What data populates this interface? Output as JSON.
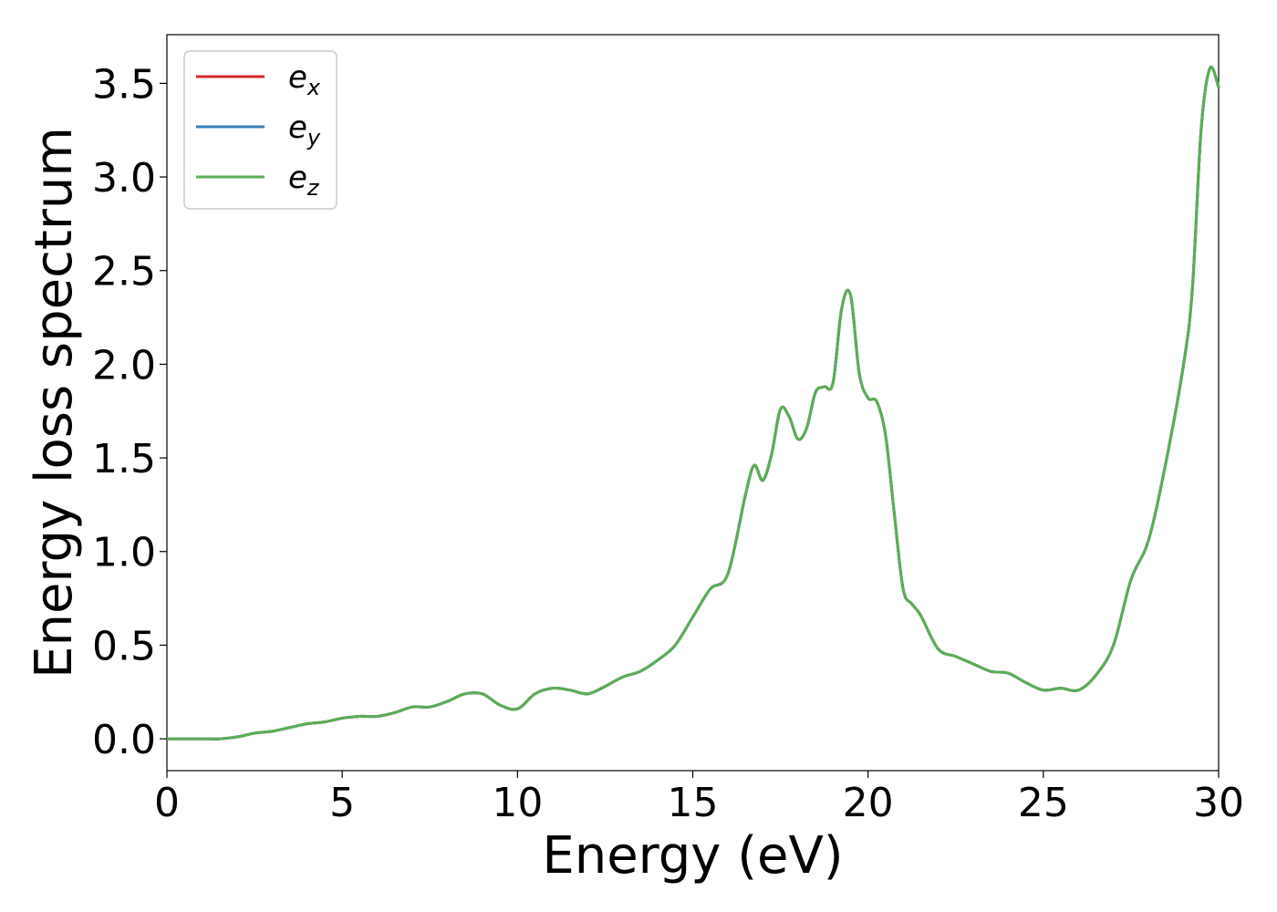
{
  "chart_data": {
    "type": "line",
    "title": "",
    "xlabel": "Energy (eV)",
    "ylabel": "Energy loss spectrum",
    "xlim": [
      0,
      30
    ],
    "ylim": [
      -0.17,
      3.76
    ],
    "xticks": [
      0,
      5,
      10,
      15,
      20,
      25,
      30
    ],
    "yticks": [
      0.0,
      0.5,
      1.0,
      1.5,
      2.0,
      2.5,
      3.0,
      3.5
    ],
    "xtick_labels": [
      "0",
      "5",
      "10",
      "15",
      "20",
      "25",
      "30"
    ],
    "ytick_labels": [
      "0.0",
      "0.5",
      "1.0",
      "1.5",
      "2.0",
      "2.5",
      "3.0",
      "3.5"
    ],
    "grid": false,
    "legend_position": "top-left",
    "x": [
      0,
      0.5,
      1,
      1.5,
      2,
      2.5,
      3,
      3.5,
      4,
      4.5,
      5,
      5.5,
      6,
      6.5,
      7,
      7.5,
      8,
      8.5,
      9,
      9.5,
      10,
      10.5,
      11,
      11.5,
      12,
      12.5,
      13,
      13.5,
      14,
      14.5,
      15,
      15.5,
      16,
      16.5,
      16.75,
      17,
      17.25,
      17.5,
      17.75,
      18,
      18.25,
      18.5,
      18.75,
      19,
      19.25,
      19.5,
      19.75,
      20,
      20.25,
      20.5,
      20.75,
      21,
      21.25,
      21.5,
      22,
      22.5,
      23,
      23.5,
      24,
      24.5,
      25,
      25.5,
      26,
      26.5,
      27,
      27.5,
      28,
      28.5,
      29,
      29.25,
      29.5,
      29.75,
      30
    ],
    "series": [
      {
        "name": "e_x",
        "label_base": "e",
        "label_sub": "x",
        "color": "#d62728",
        "values": [
          0.0,
          0.0,
          0.0,
          0.0,
          0.01,
          0.03,
          0.04,
          0.06,
          0.08,
          0.09,
          0.11,
          0.12,
          0.12,
          0.14,
          0.17,
          0.17,
          0.2,
          0.24,
          0.24,
          0.18,
          0.16,
          0.24,
          0.27,
          0.26,
          0.24,
          0.28,
          0.33,
          0.36,
          0.42,
          0.5,
          0.65,
          0.8,
          0.88,
          1.3,
          1.46,
          1.38,
          1.52,
          1.76,
          1.72,
          1.6,
          1.66,
          1.85,
          1.88,
          1.9,
          2.3,
          2.37,
          1.95,
          1.82,
          1.8,
          1.62,
          1.2,
          0.8,
          0.72,
          0.66,
          0.48,
          0.44,
          0.4,
          0.36,
          0.35,
          0.3,
          0.26,
          0.27,
          0.26,
          0.34,
          0.5,
          0.85,
          1.06,
          1.48,
          2.0,
          2.4,
          3.25,
          3.58,
          3.48
        ]
      },
      {
        "name": "e_y",
        "label_base": "e",
        "label_sub": "y",
        "color": "#377eb8",
        "values": [
          0.0,
          0.0,
          0.0,
          0.0,
          0.01,
          0.03,
          0.04,
          0.06,
          0.08,
          0.09,
          0.11,
          0.12,
          0.12,
          0.14,
          0.17,
          0.17,
          0.2,
          0.24,
          0.24,
          0.18,
          0.16,
          0.24,
          0.27,
          0.26,
          0.24,
          0.28,
          0.33,
          0.36,
          0.42,
          0.5,
          0.65,
          0.8,
          0.88,
          1.3,
          1.46,
          1.38,
          1.52,
          1.76,
          1.72,
          1.6,
          1.66,
          1.85,
          1.88,
          1.9,
          2.3,
          2.37,
          1.95,
          1.82,
          1.8,
          1.62,
          1.2,
          0.8,
          0.72,
          0.66,
          0.48,
          0.44,
          0.4,
          0.36,
          0.35,
          0.3,
          0.26,
          0.27,
          0.26,
          0.34,
          0.5,
          0.85,
          1.06,
          1.48,
          2.0,
          2.4,
          3.25,
          3.58,
          3.48
        ]
      },
      {
        "name": "e_z",
        "label_base": "e",
        "label_sub": "z",
        "color": "#5aae55",
        "values": [
          0.0,
          0.0,
          0.0,
          0.0,
          0.01,
          0.03,
          0.04,
          0.06,
          0.08,
          0.09,
          0.11,
          0.12,
          0.12,
          0.14,
          0.17,
          0.17,
          0.2,
          0.24,
          0.24,
          0.18,
          0.16,
          0.24,
          0.27,
          0.26,
          0.24,
          0.28,
          0.33,
          0.36,
          0.42,
          0.5,
          0.65,
          0.8,
          0.88,
          1.3,
          1.46,
          1.38,
          1.52,
          1.76,
          1.72,
          1.6,
          1.66,
          1.85,
          1.88,
          1.9,
          2.3,
          2.37,
          1.95,
          1.82,
          1.8,
          1.62,
          1.2,
          0.8,
          0.72,
          0.66,
          0.48,
          0.44,
          0.4,
          0.36,
          0.35,
          0.3,
          0.26,
          0.27,
          0.26,
          0.34,
          0.5,
          0.85,
          1.06,
          1.48,
          2.0,
          2.4,
          3.25,
          3.58,
          3.48
        ]
      }
    ]
  }
}
